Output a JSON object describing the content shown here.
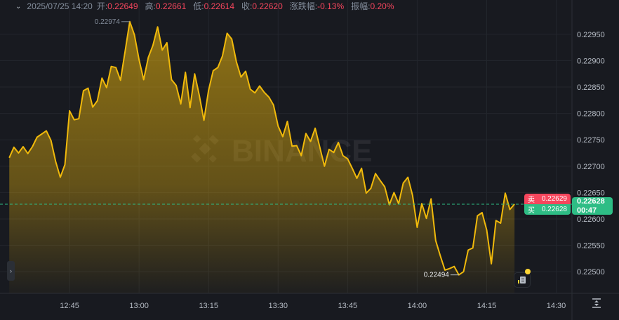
{
  "header": {
    "datetime": "2025/07/25 14:20",
    "open_label": "开:",
    "open": "0.22649",
    "high_label": "高:",
    "high": "0.22661",
    "low_label": "低:",
    "low": "0.22614",
    "close_label": "收:",
    "close": "0.22620",
    "change_label": "涨跌幅:",
    "change": "-0.13%",
    "amplitude_label": "振幅:",
    "amplitude": "0.20%"
  },
  "order_book": {
    "sell_label": "卖",
    "sell_price": "0.22629",
    "buy_label": "买",
    "buy_price": "0.22628"
  },
  "current_price": {
    "price": "0.22628",
    "countdown": "00:47"
  },
  "watermark": "BINANCE",
  "colors": {
    "line": "#f0b90b",
    "up": "#2ebd85",
    "down": "#f6465d",
    "background": "#181a20",
    "grid": "#23262d"
  },
  "icons": {
    "collapse": "chevron-down-icon",
    "expand": "chevron-right-icon",
    "fit": "fit-to-screen-icon",
    "orders": "order-list-icon"
  },
  "chart_data": {
    "type": "area",
    "grid": true,
    "x_ticks": [
      "12:45",
      "13:00",
      "13:15",
      "13:30",
      "13:45",
      "14:00",
      "14:15",
      "14:30"
    ],
    "y_ticks": [
      "0.22500",
      "0.22550",
      "0.22600",
      "0.22650",
      "0.22700",
      "0.22750",
      "0.22800",
      "0.22850",
      "0.22900",
      "0.22950"
    ],
    "xlim": [
      "12:30",
      "14:33"
    ],
    "ylim": [
      0.22459,
      0.23015
    ],
    "start_time": "12:32",
    "interval": "1m",
    "values": [
      0.22716,
      0.22736,
      0.22725,
      0.22737,
      0.22724,
      0.22737,
      0.22755,
      0.22761,
      0.22767,
      0.22749,
      0.22709,
      0.22679,
      0.22703,
      0.22805,
      0.22788,
      0.2279,
      0.22843,
      0.22848,
      0.22812,
      0.22824,
      0.22867,
      0.22849,
      0.22889,
      0.22887,
      0.22863,
      0.22918,
      0.22974,
      0.22949,
      0.22902,
      0.22864,
      0.22906,
      0.22929,
      0.22964,
      0.2292,
      0.22934,
      0.22864,
      0.22853,
      0.22818,
      0.22878,
      0.22811,
      0.22875,
      0.22834,
      0.22787,
      0.22844,
      0.22881,
      0.22887,
      0.22909,
      0.22952,
      0.22941,
      0.22898,
      0.22869,
      0.2288,
      0.22846,
      0.22839,
      0.22852,
      0.2284,
      0.22831,
      0.22816,
      0.22776,
      0.22756,
      0.22785,
      0.22738,
      0.22739,
      0.2272,
      0.22762,
      0.22747,
      0.22772,
      0.22736,
      0.227,
      0.22732,
      0.22726,
      0.22745,
      0.2272,
      0.22714,
      0.22696,
      0.22677,
      0.22696,
      0.22649,
      0.22658,
      0.22686,
      0.22673,
      0.22661,
      0.22627,
      0.2265,
      0.22629,
      0.22668,
      0.22679,
      0.22645,
      0.22584,
      0.22629,
      0.22601,
      0.22638,
      0.22559,
      0.2253,
      0.22503,
      0.22506,
      0.2251,
      0.22494,
      0.225,
      0.22541,
      0.22545,
      0.22606,
      0.22612,
      0.22579,
      0.22515,
      0.22597,
      0.22592,
      0.22649,
      0.22618,
      0.22628
    ],
    "annotations": {
      "max_label": "0.22974",
      "min_label": "0.22494"
    },
    "price_line": 0.22628
  }
}
